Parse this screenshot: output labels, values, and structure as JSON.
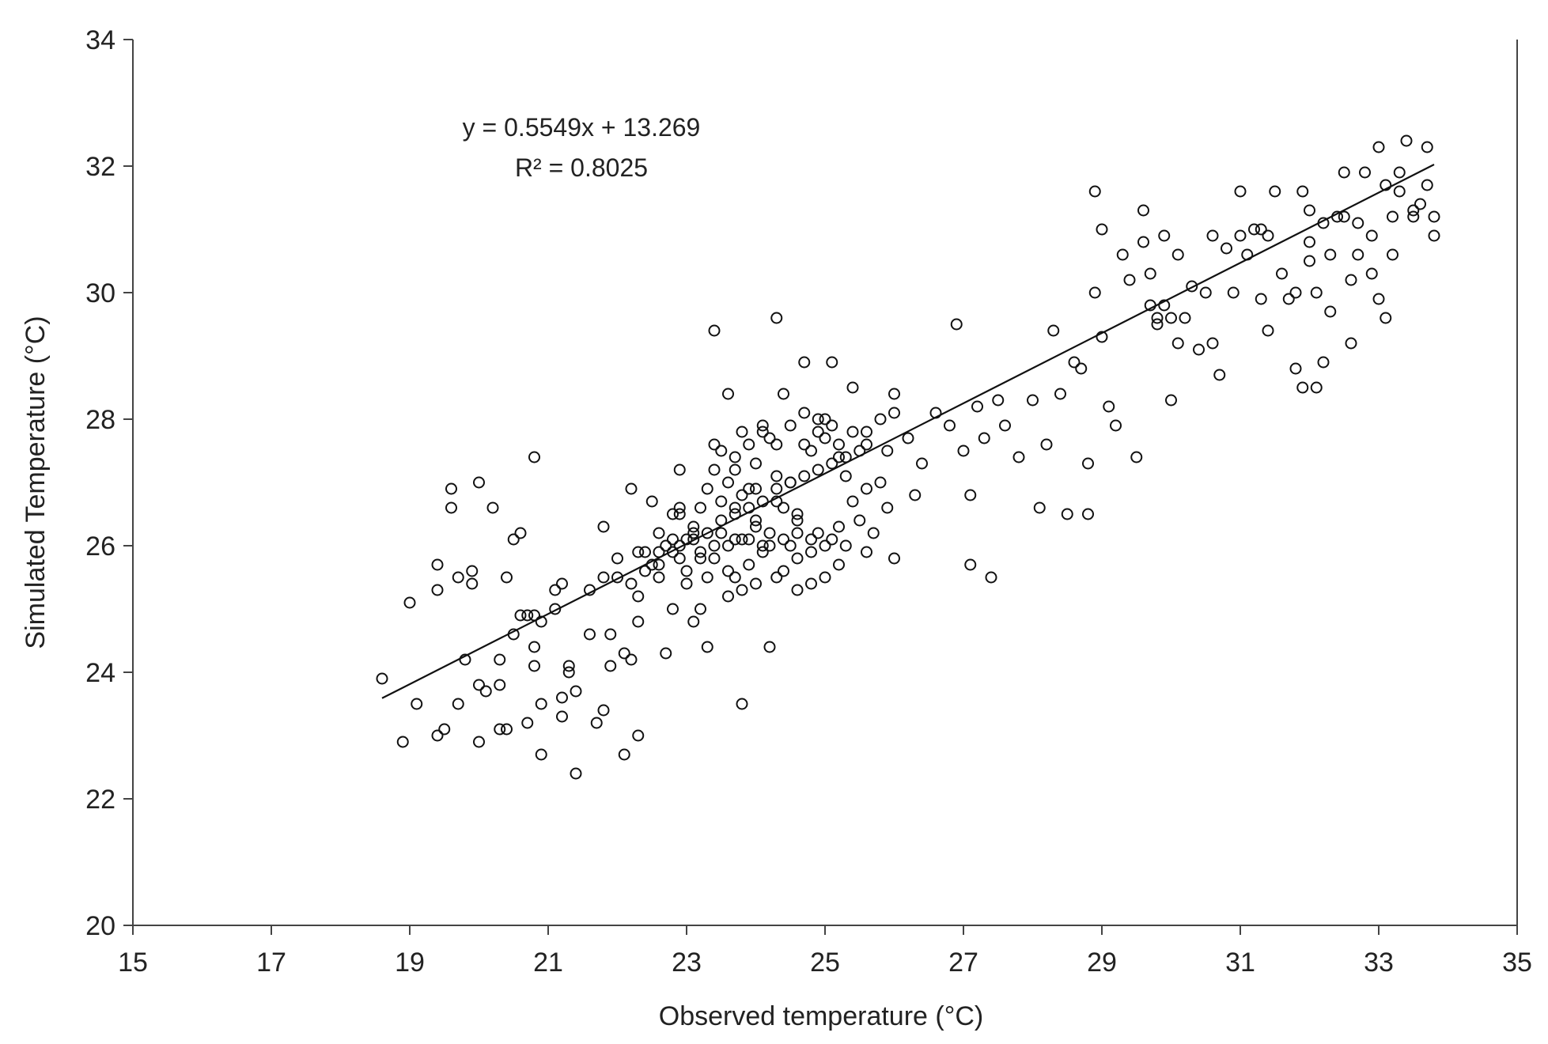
{
  "chart_data": {
    "type": "scatter",
    "title": "",
    "xlabel": "Observed temperature (°C)",
    "ylabel": "Simulated Temperature (°C)",
    "xlim": [
      15,
      35
    ],
    "ylim": [
      20,
      34
    ],
    "xticks": [
      "15",
      "17",
      "19",
      "21",
      "23",
      "25",
      "27",
      "29",
      "31",
      "33",
      "35"
    ],
    "yticks": [
      "20",
      "22",
      "24",
      "26",
      "28",
      "30",
      "32",
      "34"
    ],
    "grid": false,
    "legend": "none",
    "marker": "open-circle",
    "colors": {
      "marker": "#111111",
      "line": "#111111",
      "axis": "#444444"
    },
    "annotations": [
      "y = 0.5549x + 13.269",
      "R² = 0.8025"
    ],
    "trendline": {
      "slope": 0.5549,
      "intercept": 13.269,
      "x_range": [
        18.6,
        33.8
      ]
    },
    "points": [
      [
        18.6,
        23.9
      ],
      [
        18.9,
        22.9
      ],
      [
        19.0,
        25.1
      ],
      [
        19.1,
        23.5
      ],
      [
        19.4,
        23.0
      ],
      [
        19.4,
        25.3
      ],
      [
        19.4,
        25.7
      ],
      [
        19.5,
        23.1
      ],
      [
        19.6,
        26.6
      ],
      [
        19.6,
        26.9
      ],
      [
        19.7,
        25.5
      ],
      [
        19.7,
        23.5
      ],
      [
        19.8,
        24.2
      ],
      [
        19.9,
        25.6
      ],
      [
        19.9,
        25.4
      ],
      [
        20.0,
        27.0
      ],
      [
        20.0,
        23.8
      ],
      [
        20.0,
        22.9
      ],
      [
        20.1,
        23.7
      ],
      [
        20.2,
        26.6
      ],
      [
        20.3,
        24.2
      ],
      [
        20.3,
        23.8
      ],
      [
        20.3,
        23.1
      ],
      [
        20.4,
        23.1
      ],
      [
        20.4,
        25.5
      ],
      [
        20.5,
        24.6
      ],
      [
        20.5,
        26.1
      ],
      [
        20.6,
        26.2
      ],
      [
        20.7,
        24.9
      ],
      [
        20.7,
        23.2
      ],
      [
        20.8,
        27.4
      ],
      [
        20.8,
        24.9
      ],
      [
        20.8,
        24.1
      ],
      [
        20.8,
        24.4
      ],
      [
        20.9,
        24.8
      ],
      [
        20.9,
        23.5
      ],
      [
        20.9,
        22.7
      ],
      [
        21.1,
        25.3
      ],
      [
        21.2,
        25.4
      ],
      [
        21.2,
        23.6
      ],
      [
        21.2,
        23.3
      ],
      [
        21.3,
        24.0
      ],
      [
        21.3,
        24.1
      ],
      [
        21.4,
        23.7
      ],
      [
        21.4,
        22.4
      ],
      [
        21.6,
        24.6
      ],
      [
        21.7,
        23.2
      ],
      [
        21.8,
        25.5
      ],
      [
        21.8,
        26.3
      ],
      [
        21.8,
        23.4
      ],
      [
        21.9,
        24.6
      ],
      [
        21.9,
        24.1
      ],
      [
        22.0,
        25.8
      ],
      [
        22.1,
        22.7
      ],
      [
        22.1,
        24.3
      ],
      [
        22.2,
        25.4
      ],
      [
        22.2,
        24.2
      ],
      [
        22.2,
        26.9
      ],
      [
        22.3,
        24.8
      ],
      [
        22.3,
        23.0
      ],
      [
        22.3,
        25.2
      ],
      [
        22.4,
        25.9
      ],
      [
        22.5,
        26.7
      ],
      [
        22.6,
        25.5
      ],
      [
        22.6,
        25.7
      ],
      [
        22.7,
        24.3
      ],
      [
        22.8,
        26.1
      ],
      [
        22.8,
        25.0
      ],
      [
        22.8,
        26.5
      ],
      [
        22.9,
        27.2
      ],
      [
        22.9,
        25.8
      ],
      [
        22.9,
        26.6
      ],
      [
        23.0,
        26.1
      ],
      [
        23.0,
        25.4
      ],
      [
        23.1,
        24.8
      ],
      [
        23.1,
        26.3
      ],
      [
        23.2,
        25.0
      ],
      [
        23.2,
        25.8
      ],
      [
        23.3,
        26.9
      ],
      [
        23.3,
        24.4
      ],
      [
        23.3,
        25.5
      ],
      [
        23.4,
        26.0
      ],
      [
        23.4,
        27.6
      ],
      [
        23.4,
        29.4
      ],
      [
        23.5,
        26.2
      ],
      [
        23.6,
        28.4
      ],
      [
        23.6,
        25.2
      ],
      [
        23.6,
        25.6
      ],
      [
        23.7,
        26.1
      ],
      [
        23.7,
        26.6
      ],
      [
        23.7,
        27.2
      ],
      [
        23.8,
        23.5
      ],
      [
        23.8,
        27.8
      ],
      [
        23.8,
        25.3
      ],
      [
        23.9,
        26.9
      ],
      [
        23.9,
        25.7
      ],
      [
        24.0,
        27.3
      ],
      [
        24.0,
        26.4
      ],
      [
        24.1,
        27.9
      ],
      [
        24.1,
        25.9
      ],
      [
        24.2,
        24.4
      ],
      [
        24.2,
        26.2
      ],
      [
        24.3,
        26.7
      ],
      [
        24.3,
        27.6
      ],
      [
        24.3,
        29.6
      ],
      [
        24.4,
        28.4
      ],
      [
        24.4,
        25.6
      ],
      [
        24.5,
        26.0
      ],
      [
        24.5,
        27.0
      ],
      [
        24.6,
        25.3
      ],
      [
        24.6,
        26.4
      ],
      [
        24.7,
        28.9
      ],
      [
        24.7,
        27.6
      ],
      [
        24.8,
        26.1
      ],
      [
        24.8,
        25.4
      ],
      [
        24.9,
        27.8
      ],
      [
        24.9,
        26.2
      ],
      [
        25.0,
        25.5
      ],
      [
        25.0,
        28.0
      ],
      [
        25.1,
        28.9
      ],
      [
        25.1,
        26.1
      ],
      [
        25.2,
        27.4
      ],
      [
        25.2,
        25.7
      ],
      [
        25.3,
        27.1
      ],
      [
        25.3,
        26.0
      ],
      [
        25.4,
        28.5
      ],
      [
        25.5,
        26.4
      ],
      [
        25.6,
        27.6
      ],
      [
        25.6,
        25.9
      ],
      [
        25.7,
        26.2
      ],
      [
        25.8,
        27.0
      ],
      [
        25.9,
        27.5
      ],
      [
        25.9,
        26.6
      ],
      [
        26.0,
        28.4
      ],
      [
        26.0,
        25.8
      ],
      [
        26.2,
        27.7
      ],
      [
        26.3,
        26.8
      ],
      [
        26.4,
        27.3
      ],
      [
        26.6,
        28.1
      ],
      [
        26.8,
        27.9
      ],
      [
        26.9,
        29.5
      ],
      [
        27.0,
        27.5
      ],
      [
        27.1,
        26.8
      ],
      [
        27.1,
        25.7
      ],
      [
        27.2,
        28.2
      ],
      [
        27.3,
        27.7
      ],
      [
        27.4,
        25.5
      ],
      [
        27.5,
        28.3
      ],
      [
        27.6,
        27.9
      ],
      [
        27.8,
        27.4
      ],
      [
        28.0,
        28.3
      ],
      [
        28.1,
        26.6
      ],
      [
        28.2,
        27.6
      ],
      [
        28.3,
        29.4
      ],
      [
        28.4,
        28.4
      ],
      [
        28.5,
        26.5
      ],
      [
        28.6,
        28.9
      ],
      [
        28.7,
        28.8
      ],
      [
        28.8,
        26.5
      ],
      [
        28.8,
        27.3
      ],
      [
        28.9,
        30.0
      ],
      [
        28.9,
        31.6
      ],
      [
        29.0,
        29.3
      ],
      [
        29.0,
        31.0
      ],
      [
        29.1,
        28.2
      ],
      [
        29.2,
        27.9
      ],
      [
        29.3,
        30.6
      ],
      [
        29.4,
        30.2
      ],
      [
        29.5,
        27.4
      ],
      [
        29.6,
        31.3
      ],
      [
        29.6,
        30.8
      ],
      [
        29.7,
        29.8
      ],
      [
        29.7,
        30.3
      ],
      [
        29.8,
        29.5
      ],
      [
        29.9,
        29.8
      ],
      [
        29.9,
        30.9
      ],
      [
        30.0,
        29.6
      ],
      [
        30.0,
        28.3
      ],
      [
        30.1,
        30.6
      ],
      [
        30.1,
        29.2
      ],
      [
        30.2,
        29.6
      ],
      [
        30.3,
        30.1
      ],
      [
        30.4,
        29.1
      ],
      [
        30.5,
        30.0
      ],
      [
        30.6,
        29.2
      ],
      [
        30.7,
        28.7
      ],
      [
        30.8,
        30.7
      ],
      [
        30.9,
        30.0
      ],
      [
        31.0,
        31.6
      ],
      [
        31.0,
        30.9
      ],
      [
        31.1,
        30.6
      ],
      [
        31.2,
        31.0
      ],
      [
        31.3,
        29.9
      ],
      [
        31.4,
        29.4
      ],
      [
        31.4,
        30.9
      ],
      [
        31.5,
        31.6
      ],
      [
        31.6,
        30.3
      ],
      [
        31.7,
        29.9
      ],
      [
        31.8,
        30.0
      ],
      [
        31.8,
        28.8
      ],
      [
        31.9,
        31.6
      ],
      [
        31.9,
        28.5
      ],
      [
        32.0,
        30.8
      ],
      [
        32.0,
        31.3
      ],
      [
        32.1,
        28.5
      ],
      [
        32.1,
        30.0
      ],
      [
        32.2,
        31.1
      ],
      [
        32.2,
        28.9
      ],
      [
        32.3,
        29.7
      ],
      [
        32.3,
        30.6
      ],
      [
        32.4,
        31.2
      ],
      [
        32.5,
        31.9
      ],
      [
        32.5,
        31.2
      ],
      [
        32.6,
        30.2
      ],
      [
        32.6,
        29.2
      ],
      [
        32.7,
        31.1
      ],
      [
        32.7,
        30.6
      ],
      [
        32.8,
        31.9
      ],
      [
        32.9,
        30.9
      ],
      [
        32.9,
        30.3
      ],
      [
        33.0,
        32.3
      ],
      [
        33.0,
        29.9
      ],
      [
        33.1,
        31.7
      ],
      [
        33.1,
        29.6
      ],
      [
        33.2,
        31.2
      ],
      [
        33.2,
        30.6
      ],
      [
        33.3,
        31.9
      ],
      [
        33.3,
        31.6
      ],
      [
        33.4,
        32.4
      ],
      [
        33.5,
        31.2
      ],
      [
        33.5,
        31.3
      ],
      [
        33.6,
        31.4
      ],
      [
        33.7,
        32.3
      ],
      [
        33.7,
        31.7
      ],
      [
        33.8,
        30.9
      ],
      [
        33.8,
        31.2
      ],
      [
        29.8,
        29.6
      ],
      [
        30.6,
        30.9
      ],
      [
        31.3,
        31.0
      ],
      [
        32.0,
        30.5
      ],
      [
        20.6,
        24.9
      ],
      [
        21.1,
        25.0
      ],
      [
        21.6,
        25.3
      ],
      [
        22.0,
        25.5
      ],
      [
        22.4,
        25.6
      ],
      [
        22.6,
        25.9
      ],
      [
        22.9,
        26.0
      ],
      [
        23.1,
        26.1
      ],
      [
        23.3,
        26.2
      ],
      [
        23.5,
        26.4
      ],
      [
        23.7,
        26.5
      ],
      [
        23.9,
        26.6
      ],
      [
        24.1,
        26.7
      ],
      [
        24.3,
        26.9
      ],
      [
        24.5,
        27.0
      ],
      [
        24.7,
        27.1
      ],
      [
        24.9,
        27.2
      ],
      [
        25.1,
        27.3
      ],
      [
        25.3,
        27.4
      ],
      [
        25.5,
        27.5
      ],
      [
        22.7,
        26.0
      ],
      [
        23.0,
        25.6
      ],
      [
        23.2,
        25.9
      ],
      [
        23.6,
        26.0
      ],
      [
        23.9,
        26.1
      ],
      [
        24.0,
        26.3
      ],
      [
        24.2,
        26.0
      ],
      [
        24.4,
        26.1
      ],
      [
        24.6,
        26.2
      ],
      [
        22.5,
        25.7
      ],
      [
        22.8,
        25.9
      ],
      [
        23.1,
        26.2
      ],
      [
        23.4,
        25.8
      ],
      [
        23.8,
        26.1
      ],
      [
        24.1,
        26.0
      ],
      [
        24.4,
        26.6
      ],
      [
        24.6,
        26.5
      ],
      [
        24.8,
        27.5
      ],
      [
        25.0,
        27.7
      ],
      [
        25.2,
        27.6
      ],
      [
        25.4,
        27.8
      ],
      [
        25.6,
        27.8
      ],
      [
        25.8,
        28.0
      ],
      [
        26.0,
        28.1
      ],
      [
        24.2,
        27.7
      ],
      [
        24.5,
        27.9
      ],
      [
        24.7,
        28.1
      ],
      [
        24.9,
        28.0
      ],
      [
        25.1,
        27.9
      ],
      [
        23.5,
        27.5
      ],
      [
        23.7,
        27.4
      ],
      [
        23.9,
        27.6
      ],
      [
        24.1,
        27.8
      ],
      [
        24.3,
        27.1
      ],
      [
        23.4,
        27.2
      ],
      [
        23.6,
        27.0
      ],
      [
        23.8,
        26.8
      ],
      [
        24.0,
        26.9
      ],
      [
        22.3,
        25.9
      ],
      [
        22.6,
        26.2
      ],
      [
        22.9,
        26.5
      ],
      [
        23.2,
        26.6
      ],
      [
        23.5,
        26.7
      ],
      [
        23.7,
        25.5
      ],
      [
        24.0,
        25.4
      ],
      [
        24.3,
        25.5
      ],
      [
        24.6,
        25.8
      ],
      [
        24.8,
        25.9
      ],
      [
        25.0,
        26.0
      ],
      [
        25.2,
        26.3
      ],
      [
        25.4,
        26.7
      ],
      [
        25.6,
        26.9
      ]
    ]
  }
}
